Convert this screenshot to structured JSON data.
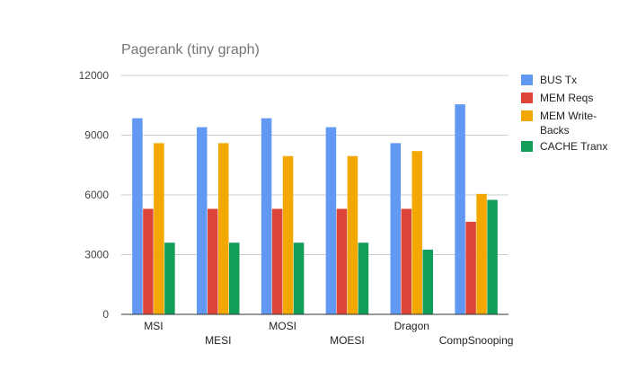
{
  "chart_data": {
    "type": "bar",
    "title": "Pagerank (tiny graph)",
    "xlabel": "",
    "ylabel": "",
    "categories": [
      "MSI",
      "MESI",
      "MOSI",
      "MOESI",
      "Dragon",
      "CompSnooping"
    ],
    "series": [
      {
        "name": "BUS Tx",
        "color": "#6199f2",
        "values": [
          9850,
          9400,
          9850,
          9400,
          8600,
          10550
        ]
      },
      {
        "name": "MEM Reqs",
        "color": "#dc4537",
        "values": [
          5300,
          5300,
          5300,
          5300,
          5300,
          4650
        ]
      },
      {
        "name": "MEM Write-Backs",
        "legend_lines": [
          "MEM Write-",
          "Backs"
        ],
        "color": "#f2a800",
        "values": [
          8600,
          8600,
          7950,
          7950,
          8200,
          6050
        ]
      },
      {
        "name": "CACHE Tranx",
        "color": "#129e59",
        "values": [
          3600,
          3600,
          3600,
          3600,
          3250,
          5750
        ]
      }
    ],
    "ylim": [
      0,
      12000
    ],
    "yticks": [
      0,
      3000,
      6000,
      9000,
      12000
    ],
    "grid": true,
    "legend": "right"
  }
}
